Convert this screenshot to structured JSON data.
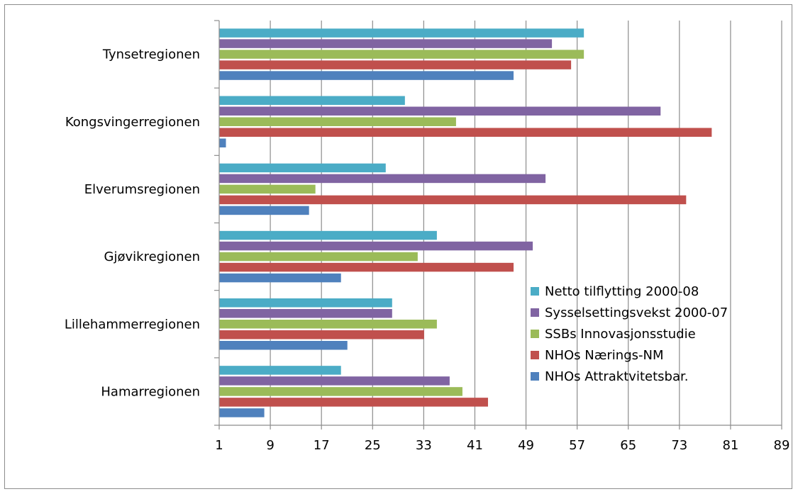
{
  "chart_data": {
    "type": "bar",
    "orientation": "horizontal",
    "categories": [
      "Hamarregionen",
      "Lillehammerregionen",
      "Gjøvikregionen",
      "Elverumsregionen",
      "Kongsvingerregionen",
      "Tynsetregionen"
    ],
    "series": [
      {
        "name": "NHOs Attraktvitetsbar.",
        "color": "#4f81bd",
        "values": [
          8,
          21,
          20,
          15,
          2,
          47
        ]
      },
      {
        "name": "NHOs Nærings-NM",
        "color": "#c0504d",
        "values": [
          43,
          33,
          47,
          74,
          78,
          56
        ]
      },
      {
        "name": "SSBs Innovasjonsstudie",
        "color": "#9bbb59",
        "values": [
          39,
          35,
          32,
          16,
          38,
          58
        ]
      },
      {
        "name": "Sysselsettingsvekst 2000-07",
        "color": "#8064a2",
        "values": [
          37,
          28,
          50,
          52,
          70,
          53
        ]
      },
      {
        "name": "Netto tilflytting 2000-08",
        "color": "#4bacc6",
        "values": [
          20,
          28,
          35,
          27,
          30,
          58
        ]
      }
    ],
    "x_ticks": [
      "1",
      "9",
      "17",
      "25",
      "33",
      "41",
      "49",
      "57",
      "65",
      "73",
      "81",
      "89"
    ],
    "xlim": [
      1,
      89
    ],
    "grid": "vertical",
    "legend_position": "lower-right",
    "title": "",
    "xlabel": "",
    "ylabel": ""
  }
}
